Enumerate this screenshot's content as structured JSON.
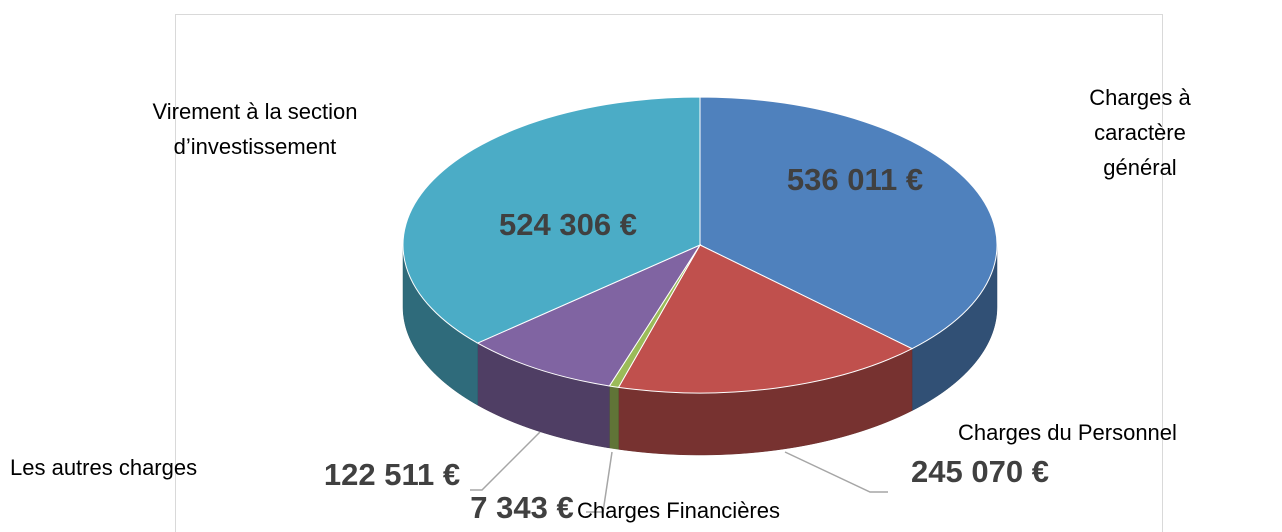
{
  "chart_data": {
    "type": "pie",
    "categories": [
      "Charges à caractère général",
      "Charges du Personnel",
      "Charges Financières",
      "Les autres charges",
      "Virement à la section d’investissement"
    ],
    "values": [
      536011,
      245070,
      7343,
      122511,
      524306
    ],
    "value_labels": [
      "536 011 €",
      "245 070 €",
      "7 343 €",
      "122 511 €",
      "524 306 €"
    ],
    "colors": [
      "#4f81bd",
      "#c0504d",
      "#9bbb59",
      "#8064a2",
      "#4bacc6"
    ]
  }
}
